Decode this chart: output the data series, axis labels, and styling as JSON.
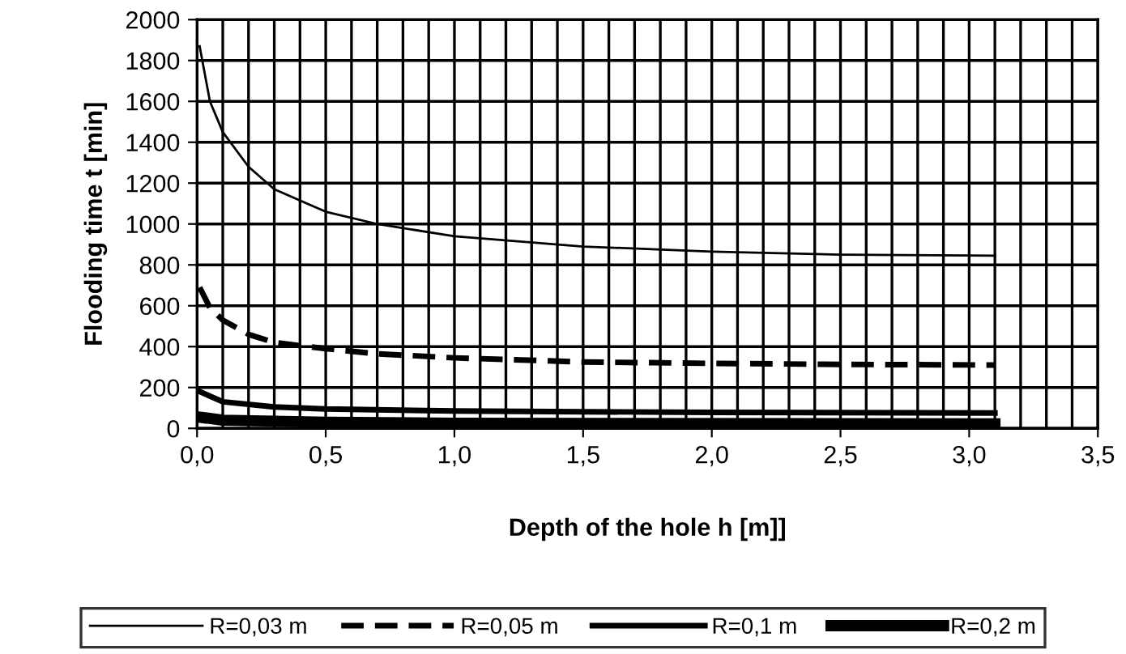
{
  "chart_data": {
    "type": "line",
    "xlabel": "Depth of the hole h [m]]",
    "ylabel": "Flooding time t [min]",
    "xlim": [
      0,
      3.5
    ],
    "xticks": [
      {
        "value": 0,
        "label": "0,0"
      },
      {
        "value": 0.5,
        "label": "0,5"
      },
      {
        "value": 1,
        "label": "1,0"
      },
      {
        "value": 1.5,
        "label": "1,5"
      },
      {
        "value": 2,
        "label": "2,0"
      },
      {
        "value": 2.5,
        "label": "2,5"
      },
      {
        "value": 3,
        "label": "3,0"
      },
      {
        "value": 3.5,
        "label": "3,5"
      }
    ],
    "ylim": [
      0,
      2000
    ],
    "yticks": [
      0,
      200,
      400,
      600,
      800,
      1000,
      1200,
      1400,
      1600,
      1800,
      2000
    ],
    "grid": true,
    "legend": "bottom",
    "marker": "none",
    "series": [
      {
        "name": "R=0,03 m",
        "color": "#000000",
        "line_style": "solid",
        "x": [
          0.01,
          0.05,
          0.1,
          0.2,
          0.3,
          0.5,
          0.7,
          1.0,
          1.5,
          2.0,
          2.5,
          3.1
        ],
        "values": [
          1870,
          1600,
          1450,
          1280,
          1170,
          1060,
          1000,
          940,
          890,
          865,
          850,
          845
        ]
      },
      {
        "name": "R=0,05 m",
        "color": "#000000",
        "line_style": "dashed",
        "x": [
          0.01,
          0.05,
          0.1,
          0.2,
          0.3,
          0.5,
          0.7,
          1.0,
          1.5,
          2.0,
          2.5,
          3.1
        ],
        "values": [
          690,
          590,
          530,
          460,
          420,
          390,
          365,
          345,
          325,
          318,
          313,
          310
        ]
      },
      {
        "name": "R=0,1 m",
        "color": "#000000",
        "line_style": "solid",
        "x": [
          0.01,
          0.1,
          0.3,
          0.5,
          1.0,
          2.0,
          3.1
        ],
        "values": [
          180,
          130,
          105,
          95,
          85,
          78,
          75
        ]
      },
      {
        "name": "R=0,2 m",
        "color": "#000000",
        "line_style": "solid",
        "x": [
          0.01,
          0.1,
          0.5,
          1.0,
          3.1
        ],
        "values": [
          55,
          40,
          30,
          25,
          22
        ]
      }
    ]
  }
}
